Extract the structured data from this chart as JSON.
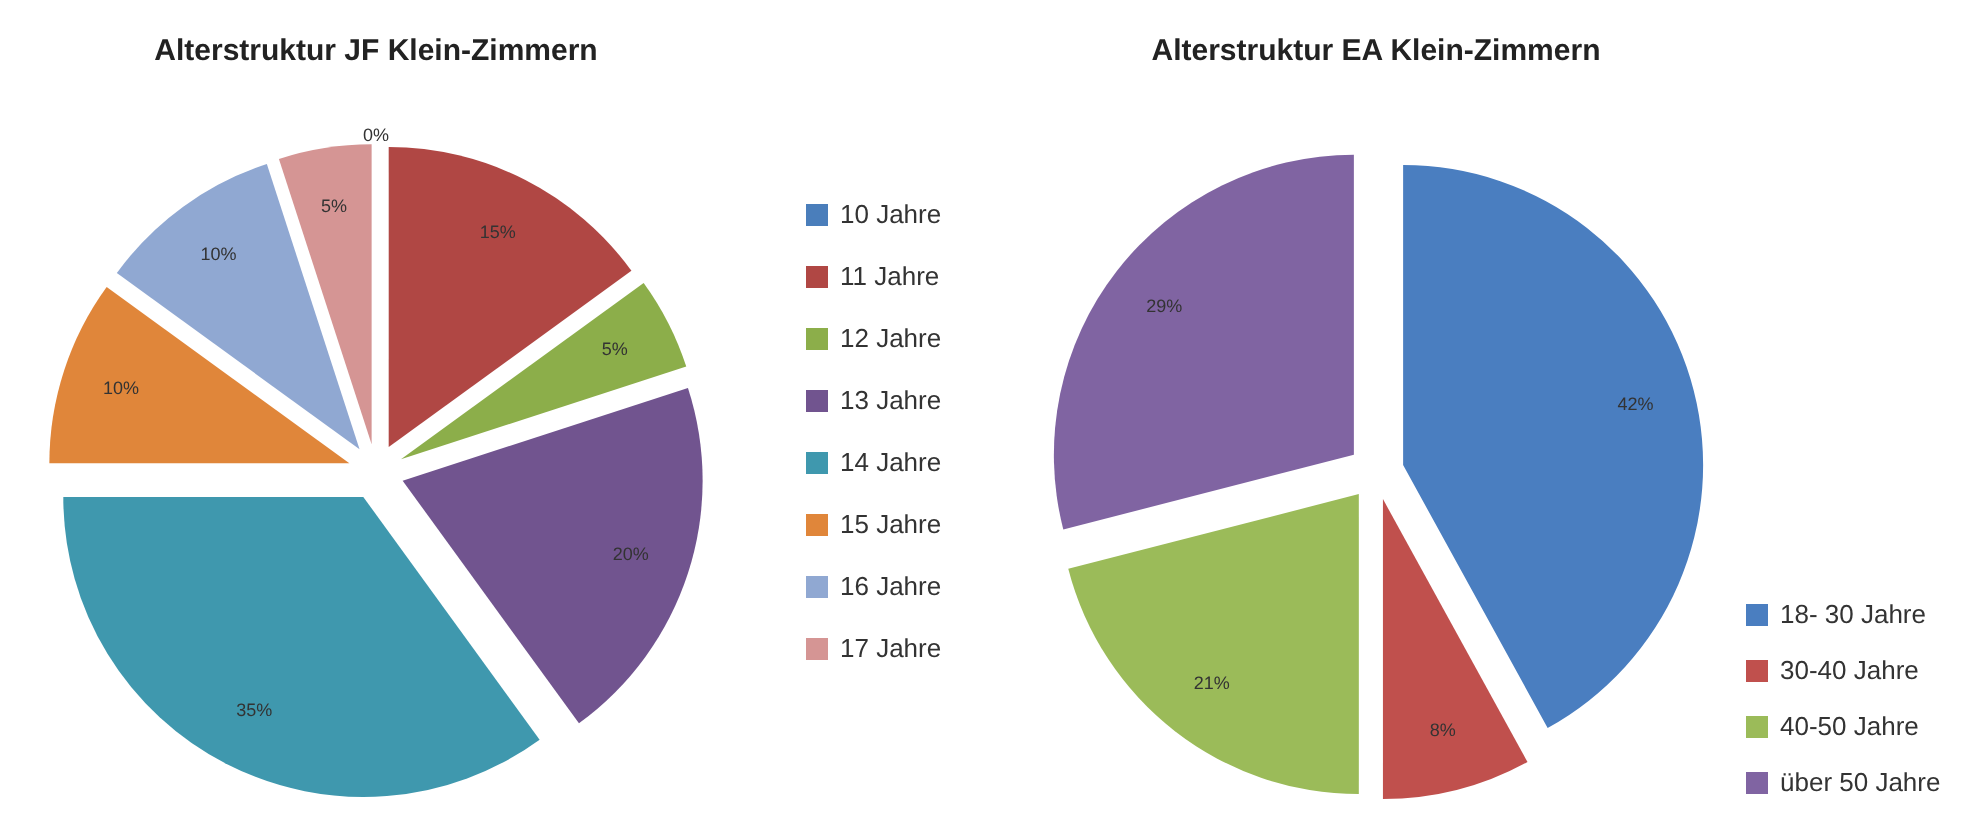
{
  "chart_data": [
    {
      "type": "pie",
      "title": "Alterstruktur JF Klein-Zimmern",
      "categories": [
        "10 Jahre",
        "11 Jahre",
        "12 Jahre",
        "13 Jahre",
        "14 Jahre",
        "15 Jahre",
        "16 Jahre",
        "17 Jahre"
      ],
      "values": [
        0,
        15,
        5,
        20,
        35,
        10,
        10,
        5
      ],
      "value_labels": [
        "0%",
        "15%",
        "5%",
        "20%",
        "35%",
        "10%",
        "10%",
        "5%"
      ],
      "colors": [
        "#4a7ebb",
        "#b04744",
        "#8cae4a",
        "#71548f",
        "#3f98ae",
        "#e0863a",
        "#90a8d2",
        "#d59594"
      ],
      "legend": "right"
    },
    {
      "type": "pie",
      "title": "Alterstruktur EA Klein-Zimmern",
      "categories": [
        "18- 30 Jahre",
        "30-40 Jahre",
        "40-50 Jahre",
        "über 50 Jahre"
      ],
      "values": [
        42,
        8,
        21,
        29
      ],
      "value_labels": [
        "42%",
        "8%",
        "21%",
        "29%"
      ],
      "colors": [
        "#4a7ec0",
        "#c0504d",
        "#9bbb59",
        "#8064a2"
      ],
      "legend": "bottom right"
    }
  ]
}
